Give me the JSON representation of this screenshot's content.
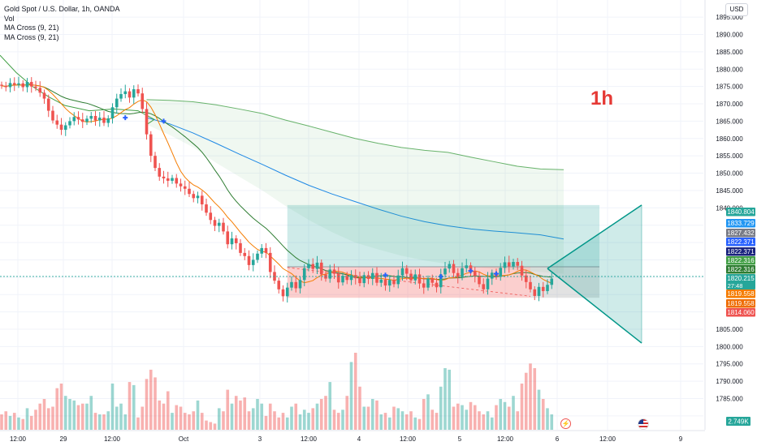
{
  "legend": {
    "symbol": "Gold Spot / U.S. Dollar, 1h, OANDA",
    "vol": "Vol",
    "ma1": "MA Cross (9, 21)",
    "ma2": "MA Cross (9, 21)"
  },
  "currency": "USD",
  "timeframe_label": "1h",
  "colors": {
    "up": "#26a69a",
    "down": "#ef5350",
    "ma_fast": "#f57c00",
    "ma_slow": "#2e7d32",
    "ma_mid": "#1e88e5",
    "cross": "#2962ff",
    "price_line": "#26a69a"
  },
  "icons": {
    "flash": "lightning-icon",
    "flag": "us-flag-icon"
  },
  "chart_data": {
    "type": "candlestick",
    "title": "Gold Spot / U.S. Dollar, 1h, OANDA",
    "ylim": [
      1776,
      1899
    ],
    "y_ticks": [
      1780,
      1785,
      1790,
      1795,
      1800,
      1805,
      1810,
      1815,
      1820,
      1825,
      1830,
      1835,
      1840,
      1845,
      1850,
      1855,
      1860,
      1865,
      1870,
      1875,
      1880,
      1885,
      1890,
      1895
    ],
    "y_tick_labels": [
      "",
      "1785.000",
      "1790.000",
      "1795.000",
      "1800.000",
      "1805.000",
      "",
      "",
      "",
      "",
      "",
      "",
      "1840.000",
      "1845.000",
      "1850.000",
      "1855.000",
      "1860.000",
      "1865.000",
      "1870.000",
      "1875.000",
      "1880.000",
      "1885.000",
      "1890.000",
      "1895.000"
    ],
    "x_tick_labels": [
      "12:00",
      "29",
      "12:00",
      "Oct",
      "3",
      "12:00",
      "4",
      "12:00",
      "5",
      "12:00",
      "6",
      "12:00",
      "9"
    ],
    "start_price": 1875.5,
    "closes": [
      1875.2,
      1874.8,
      1876.0,
      1875.5,
      1875.9,
      1874.8,
      1876.3,
      1875.0,
      1874.6,
      1873.2,
      1871.5,
      1868.0,
      1865.2,
      1864.0,
      1862.5,
      1863.8,
      1865.0,
      1866.2,
      1865.5,
      1864.8,
      1865.7,
      1866.5,
      1865.2,
      1866.0,
      1864.5,
      1865.8,
      1869.0,
      1871.5,
      1872.8,
      1873.6,
      1871.8,
      1874.2,
      1873.0,
      1868.5,
      1861.2,
      1855.0,
      1851.5,
      1849.0,
      1848.5,
      1847.8,
      1848.6,
      1847.0,
      1846.2,
      1845.5,
      1844.0,
      1842.8,
      1843.5,
      1841.0,
      1838.6,
      1836.5,
      1834.8,
      1835.7,
      1833.2,
      1829.5,
      1831.2,
      1829.8,
      1827.0,
      1826.1,
      1823.5,
      1825.0,
      1826.8,
      1828.4,
      1827.0,
      1821.5,
      1819.0,
      1816.5,
      1814.5,
      1817.0,
      1818.6,
      1816.8,
      1819.2,
      1822.6,
      1823.8,
      1822.4,
      1824.2,
      1820.8,
      1819.6,
      1822.2,
      1821.0,
      1818.5,
      1820.4,
      1819.2,
      1820.6,
      1819.7,
      1818.3,
      1820.6,
      1819.5,
      1821.2,
      1818.4,
      1819.3,
      1817.6,
      1819.2,
      1818.0,
      1820.5,
      1822.6,
      1821.0,
      1819.1,
      1820.8,
      1818.2,
      1817.0,
      1819.6,
      1818.4,
      1817.1,
      1820.8,
      1822.5,
      1823.8,
      1821.2,
      1820.0,
      1822.6,
      1823.4,
      1821.8,
      1820.3,
      1818.0,
      1816.5,
      1819.6,
      1821.3,
      1820.2,
      1822.7,
      1824.3,
      1823.1,
      1824.4,
      1823.3,
      1820.5,
      1818.6,
      1816.5,
      1814.6,
      1817.2,
      1816.0,
      1817.8,
      1819.6
    ],
    "volumes": [
      10,
      12,
      9,
      11,
      8,
      7,
      14,
      9,
      13,
      17,
      20,
      14,
      15,
      27,
      30,
      22,
      20,
      19,
      16,
      17,
      17,
      22,
      11,
      10,
      10,
      12,
      30,
      15,
      17,
      10,
      31,
      29,
      8,
      15,
      33,
      39,
      34,
      19,
      17,
      25,
      11,
      16,
      15,
      11,
      10,
      12,
      19,
      11,
      6,
      5,
      4,
      14,
      12,
      26,
      17,
      22,
      19,
      21,
      12,
      14,
      20,
      17,
      9,
      17,
      12,
      8,
      11,
      8,
      15,
      17,
      10,
      13,
      11,
      14,
      17,
      20,
      22,
      31,
      13,
      11,
      13,
      22,
      44,
      50,
      28,
      15,
      15,
      20,
      19,
      10,
      11,
      8,
      15,
      14,
      12,
      10,
      12,
      8,
      7,
      20,
      23,
      13,
      11,
      28,
      40,
      39,
      15,
      17,
      16,
      13,
      18,
      16,
      12,
      10,
      12,
      8,
      16,
      20,
      18,
      15,
      22,
      12,
      30,
      37,
      43,
      40,
      26,
      20,
      14,
      10
    ]
  },
  "overlays": {
    "box_top": 1840.804,
    "box_mid": 1823.0,
    "box_bottom": 1814.06,
    "triangle_apex_price": 1822.5,
    "triangle_top_price": 1840.8,
    "triangle_bottom_price": 1801.0,
    "cloud_top": [
      1871.2,
      1871.0,
      1870.6,
      1869.7,
      1868.5,
      1867.2,
      1865.3,
      1863.6,
      1861.8,
      1860.0,
      1858.6,
      1857.4,
      1856.6,
      1856.0,
      1854.6,
      1853.3,
      1852.0,
      1851.2,
      1851.0
    ],
    "cloud_bottom": [
      1864.0,
      1861.0,
      1857.5,
      1853.0,
      1849.0,
      1845.0,
      1840.5,
      1836.5,
      1833.0,
      1830.0,
      1828.0,
      1826.2,
      1824.8,
      1823.8,
      1822.9,
      1822.4,
      1822.0,
      1821.5,
      1821.0
    ],
    "mid_line": [
      1866.0,
      1864.2,
      1861.6,
      1858.6,
      1855.5,
      1852.5,
      1849.4,
      1846.5,
      1844.0,
      1841.8,
      1839.6,
      1837.6,
      1836.0,
      1834.8,
      1833.9,
      1833.3,
      1832.8,
      1832.2,
      1831.0
    ]
  },
  "price_scale_labels": [
    {
      "price": 1840.804,
      "label": "1840.804",
      "color": "#26a69a"
    },
    {
      "price": 1833.729,
      "label": "1833.729",
      "color": "#2196f3"
    },
    {
      "price": 1827.432,
      "label": "1827.432",
      "color": "#787b86"
    },
    {
      "price": 1822.371,
      "label": "1822.371",
      "color": "#2962ff"
    },
    {
      "price": 1822.371,
      "label": "1822.371",
      "color": "#1a237e"
    },
    {
      "price": 1822.316,
      "label": "1822.316",
      "color": "#43a047"
    },
    {
      "price": 1822.316,
      "label": "1822.316",
      "color": "#2e7d32"
    },
    {
      "price": 1820.215,
      "label": "1820.215",
      "color": "#26a69a",
      "sub": "27:48"
    },
    {
      "price": 1819.558,
      "label": "1819.558",
      "color": "#f57c00"
    },
    {
      "price": 1819.558,
      "label": "1819.558",
      "color": "#ef6c00"
    },
    {
      "price": 1814.06,
      "label": "1814.060",
      "color": "#ef5350"
    }
  ],
  "volume_label": "2.749K"
}
